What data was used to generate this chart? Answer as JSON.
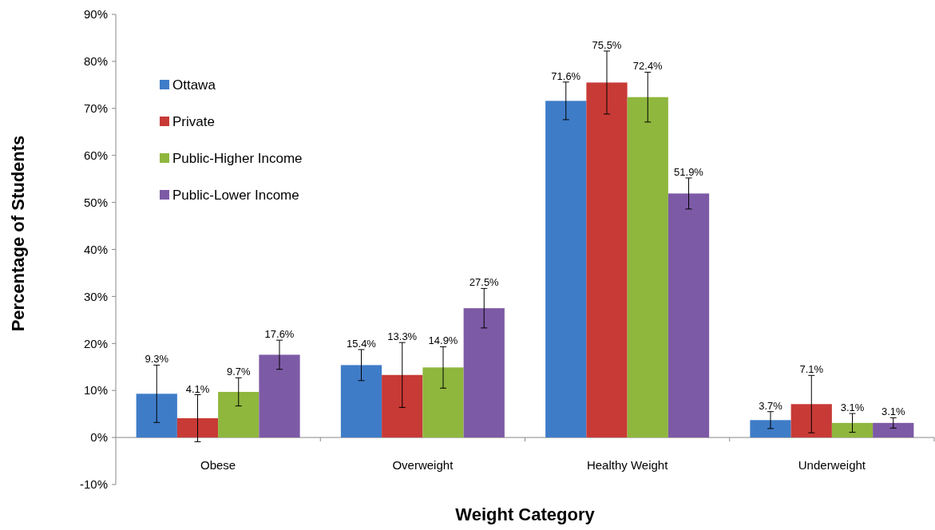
{
  "chart_data": {
    "type": "bar",
    "xlabel": "Weight Category",
    "ylabel": "Percentage of Students",
    "categories": [
      "Obese",
      "Overweight",
      "Healthy Weight",
      "Underweight"
    ],
    "series": [
      {
        "name": "Ottawa",
        "color": "#3f7cc8",
        "values": [
          9.3,
          15.4,
          71.6,
          3.7
        ],
        "errors": [
          6.1,
          3.3,
          4.0,
          1.8
        ],
        "value_labels": [
          "9.3%",
          "15.4%",
          "71.6%",
          "3.7%"
        ]
      },
      {
        "name": "Private",
        "color": "#c83a36",
        "values": [
          4.1,
          13.3,
          75.5,
          7.1
        ],
        "errors": [
          5.0,
          6.9,
          6.7,
          6.1
        ],
        "value_labels": [
          "4.1%",
          "13.3%",
          "75.5%",
          "7.1%"
        ]
      },
      {
        "name": "Public-Higher Income",
        "color": "#8fb73e",
        "values": [
          9.7,
          14.9,
          72.4,
          3.1
        ],
        "errors": [
          3.0,
          4.4,
          5.3,
          2.0
        ],
        "value_labels": [
          "9.7%",
          "14.9%",
          "72.4%",
          "3.1%"
        ]
      },
      {
        "name": "Public-Lower Income",
        "color": "#7d5aa6",
        "values": [
          17.6,
          27.5,
          51.9,
          3.1
        ],
        "errors": [
          3.1,
          4.2,
          3.3,
          1.1
        ],
        "value_labels": [
          "17.6%",
          "27.5%",
          "51.9%",
          "3.1%"
        ]
      }
    ],
    "ylim": [
      -10,
      90
    ],
    "yticks": [
      {
        "value": -10,
        "label": "-10%"
      },
      {
        "value": 0,
        "label": "0%"
      },
      {
        "value": 10,
        "label": "10%"
      },
      {
        "value": 20,
        "label": "20%"
      },
      {
        "value": 30,
        "label": "30%"
      },
      {
        "value": 40,
        "label": "40%"
      },
      {
        "value": 50,
        "label": "50%"
      },
      {
        "value": 60,
        "label": "60%"
      },
      {
        "value": 70,
        "label": "70%"
      },
      {
        "value": 80,
        "label": "80%"
      },
      {
        "value": 90,
        "label": "90%"
      }
    ],
    "grid": false,
    "legend": "top left"
  }
}
